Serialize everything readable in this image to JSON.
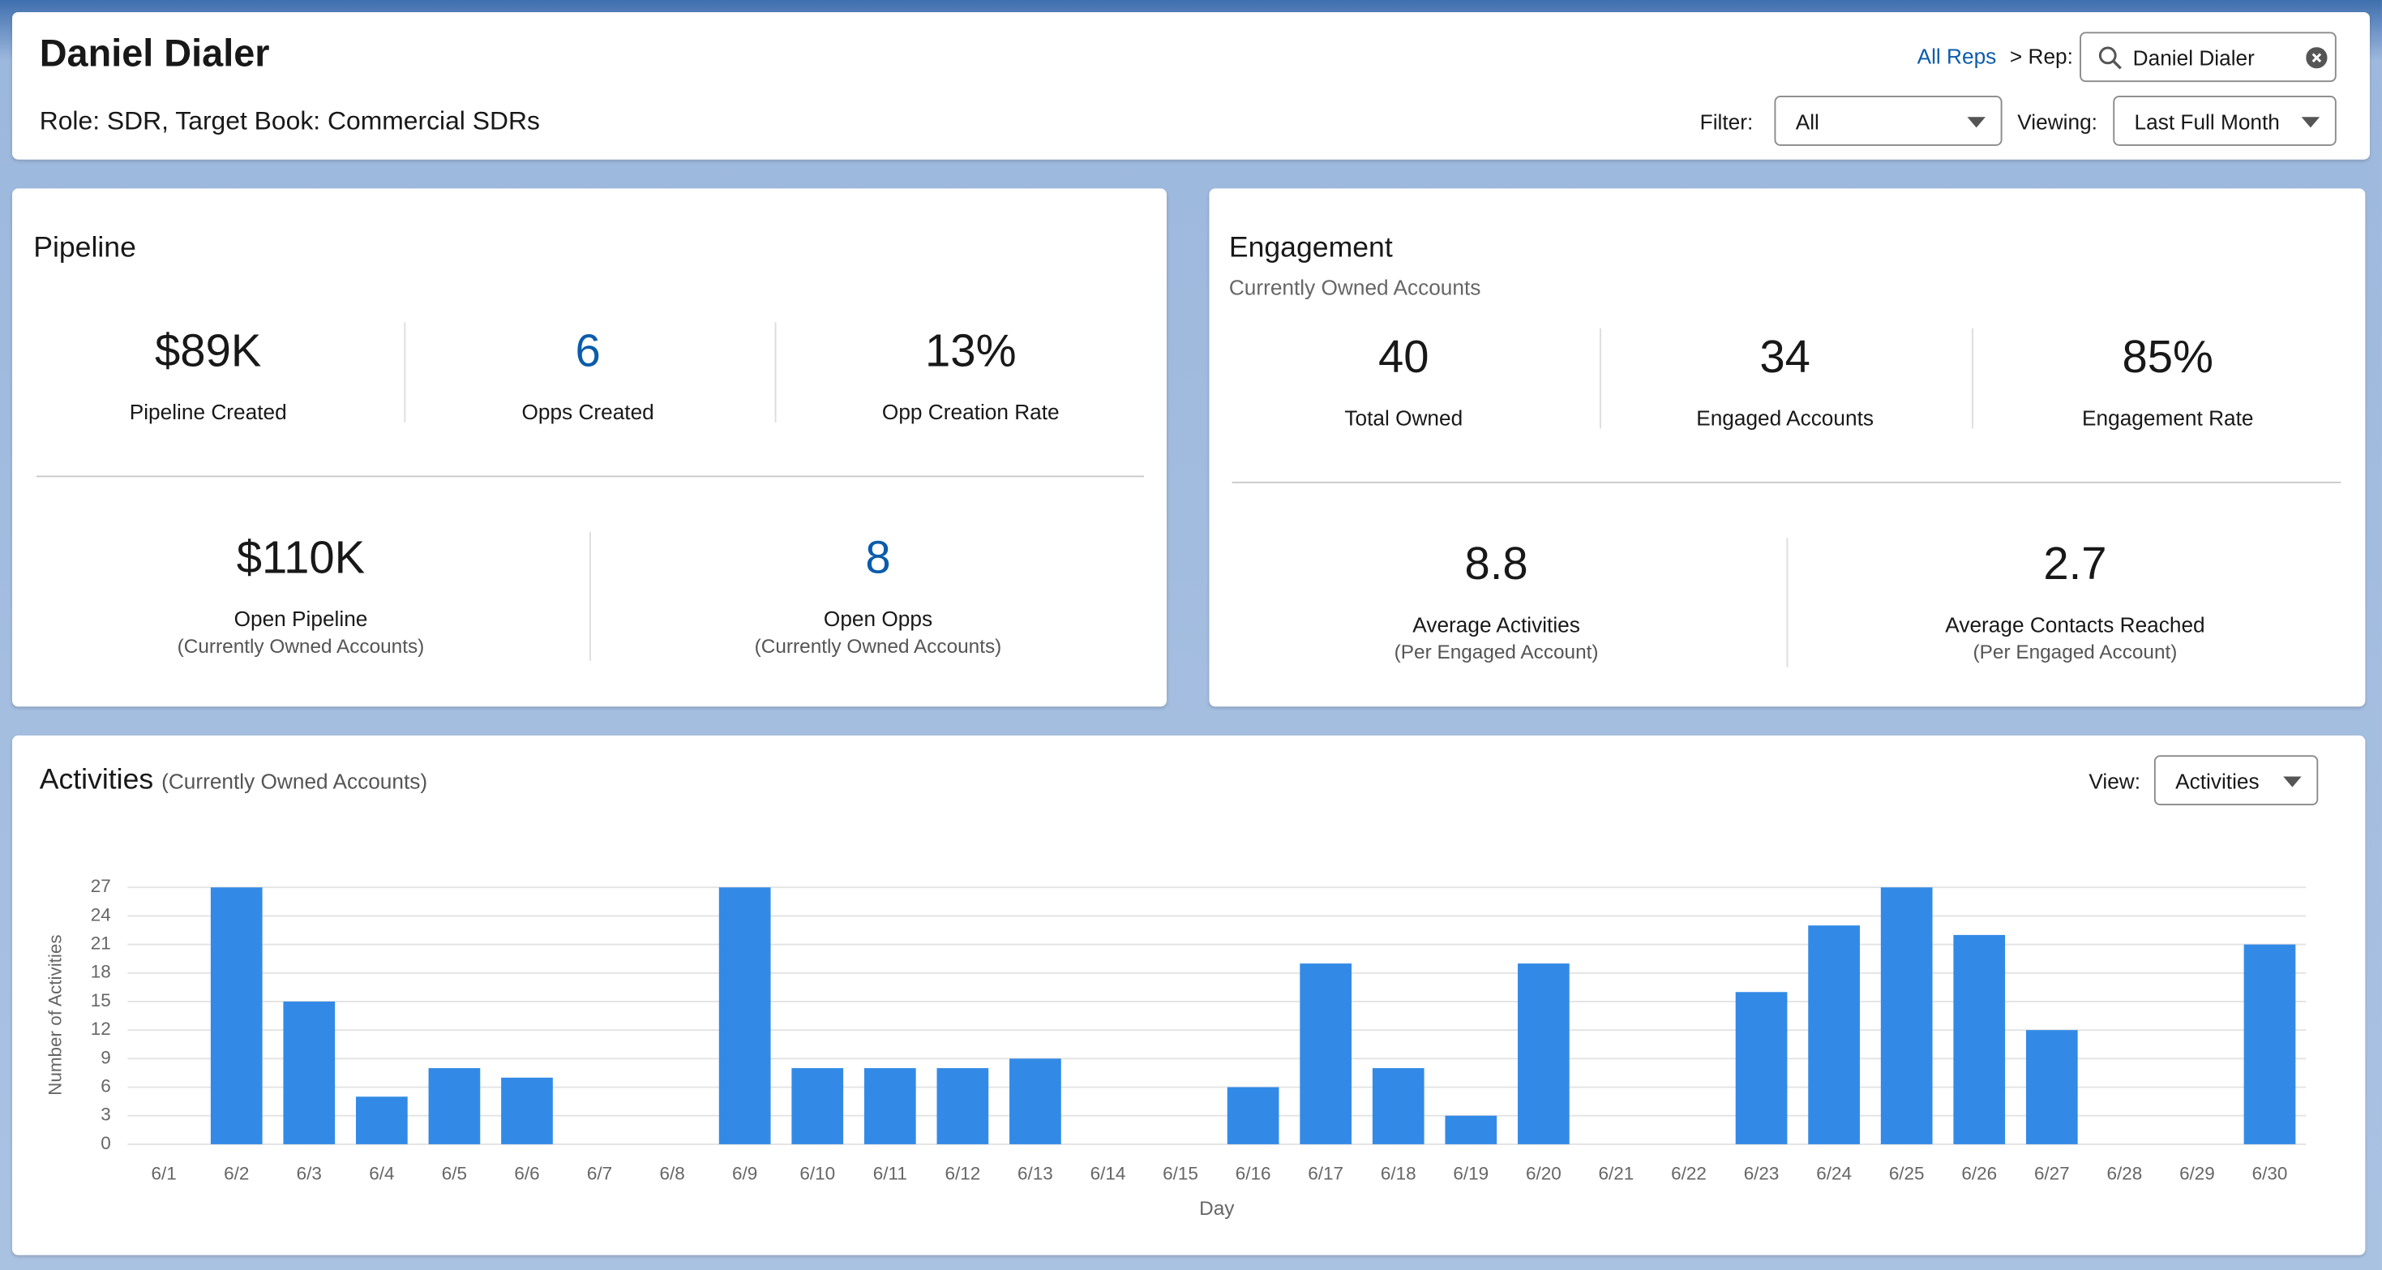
{
  "header": {
    "title": "Daniel Dialer",
    "subtitle": "Role: SDR, Target Book: Commercial SDRs",
    "all_reps": "All Reps",
    "rep_label": "> Rep:",
    "rep_value": "Daniel Dialer",
    "filter_label": "Filter:",
    "filter_value": "All",
    "viewing_label": "Viewing:",
    "viewing_value": "Last Full Month"
  },
  "pipeline": {
    "title": "Pipeline",
    "metrics": [
      {
        "value": "$89K",
        "label": "Pipeline Created"
      },
      {
        "value": "6",
        "label": "Opps Created"
      },
      {
        "value": "13%",
        "label": "Opp Creation Rate"
      },
      {
        "value": "$110K",
        "label": "Open Pipeline",
        "note": "(Currently Owned Accounts)"
      },
      {
        "value": "8",
        "label": "Open Opps",
        "note": "(Currently Owned Accounts)"
      }
    ]
  },
  "engagement": {
    "title": "Engagement",
    "subtitle": "Currently Owned Accounts",
    "metrics": [
      {
        "value": "40",
        "label": "Total Owned"
      },
      {
        "value": "34",
        "label": "Engaged Accounts"
      },
      {
        "value": "85%",
        "label": "Engagement Rate"
      },
      {
        "value": "8.8",
        "label": "Average Activities",
        "note": "(Per Engaged Account)"
      },
      {
        "value": "2.7",
        "label": "Average Contacts Reached",
        "note": "(Per Engaged Account)"
      }
    ]
  },
  "activities": {
    "title": "Activities",
    "subtitle": "(Currently Owned Accounts)",
    "view_label": "View:",
    "view_value": "Activities"
  },
  "chart_data": {
    "type": "bar",
    "x_label": "Day",
    "y_label": "Number of Activities",
    "color": "#338ae6",
    "categories": [
      "6/1",
      "6/2",
      "6/3",
      "6/4",
      "6/5",
      "6/6",
      "6/7",
      "6/8",
      "6/9",
      "6/10",
      "6/11",
      "6/12",
      "6/13",
      "6/14",
      "6/15",
      "6/16",
      "6/17",
      "6/18",
      "6/19",
      "6/20",
      "6/21",
      "6/22",
      "6/23",
      "6/24",
      "6/25",
      "6/26",
      "6/27",
      "6/28",
      "6/29",
      "6/30"
    ],
    "values": [
      0,
      27,
      15,
      5,
      8,
      7,
      0,
      0,
      27,
      8,
      8,
      8,
      9,
      0,
      0,
      6,
      19,
      8,
      3,
      19,
      0,
      0,
      16,
      23,
      27,
      22,
      12,
      0,
      0,
      21
    ],
    "ylim": [
      0,
      27
    ],
    "yticks": [
      0,
      3,
      6,
      9,
      12,
      15,
      18,
      21,
      24,
      27
    ],
    "grid": true
  }
}
